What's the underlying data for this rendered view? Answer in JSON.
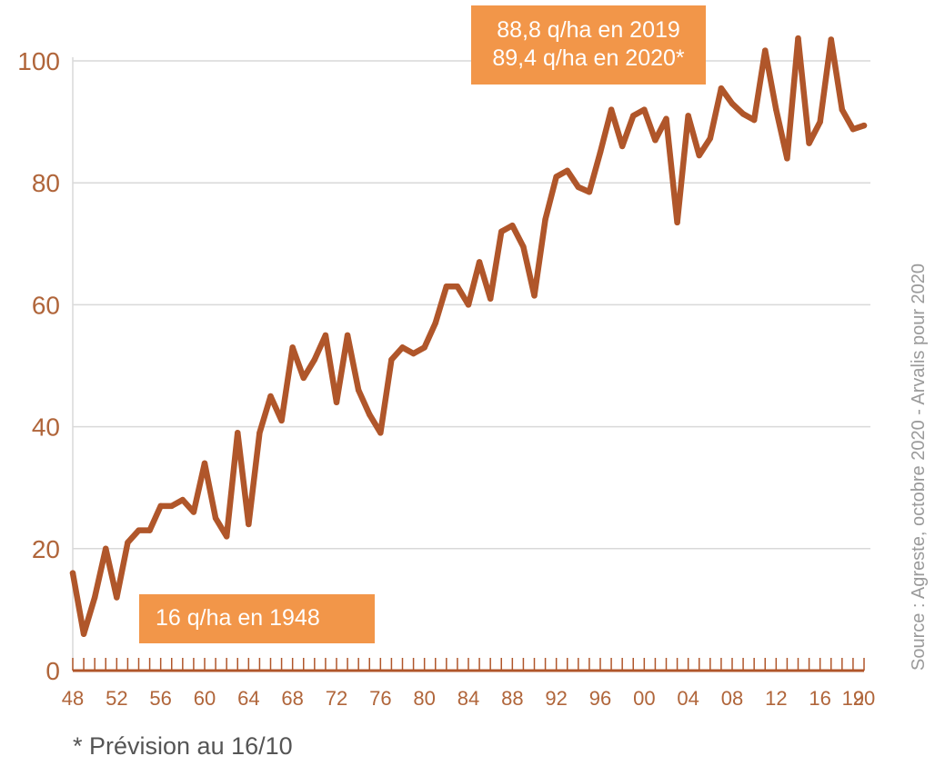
{
  "colors": {
    "line": "#b0562a",
    "axis_text": "#b0653a",
    "grid": "#d9d9d9",
    "callout_bg": "#f29649",
    "callout_text": "#ffffff",
    "source_text": "#9a9a9a"
  },
  "annotations": {
    "top_line1": "88,8 q/ha en 2019",
    "top_line2": "89,4 q/ha en 2020*",
    "bottom": "16 q/ha en 1948"
  },
  "footnote": "* Prévision au 16/10",
  "source": "Source : Agreste, octobre 2020 - Arvalis pour 2020",
  "chart_data": {
    "type": "line",
    "title": "",
    "xlabel": "",
    "ylabel": "",
    "ylim": [
      0,
      100
    ],
    "yticks": [
      0,
      20,
      40,
      60,
      80,
      100
    ],
    "xticks": [
      "48",
      "52",
      "56",
      "60",
      "64",
      "68",
      "72",
      "76",
      "80",
      "84",
      "88",
      "92",
      "96",
      "00",
      "04",
      "08",
      "12",
      "16",
      "19",
      "20"
    ],
    "grid": "horizontal",
    "x": [
      1948,
      1949,
      1950,
      1951,
      1952,
      1953,
      1954,
      1955,
      1956,
      1957,
      1958,
      1959,
      1960,
      1961,
      1962,
      1963,
      1964,
      1965,
      1966,
      1967,
      1968,
      1969,
      1970,
      1971,
      1972,
      1973,
      1974,
      1975,
      1976,
      1977,
      1978,
      1979,
      1980,
      1981,
      1982,
      1983,
      1984,
      1985,
      1986,
      1987,
      1988,
      1989,
      1990,
      1991,
      1992,
      1993,
      1994,
      1995,
      1996,
      1997,
      1998,
      1999,
      2000,
      2001,
      2002,
      2003,
      2004,
      2005,
      2006,
      2007,
      2008,
      2009,
      2010,
      2011,
      2012,
      2013,
      2014,
      2015,
      2016,
      2017,
      2018,
      2019,
      2020
    ],
    "series": [
      {
        "values": [
          16,
          6,
          12,
          20,
          12,
          21,
          23,
          23,
          27,
          27,
          28,
          26,
          34,
          25,
          22,
          39,
          24,
          39,
          45,
          41,
          53,
          48,
          51,
          55,
          44,
          55,
          46,
          42,
          39,
          51,
          53,
          52,
          53,
          57,
          63,
          63,
          60,
          67,
          61,
          72,
          73,
          69.5,
          61.5,
          74,
          81,
          82,
          79.3,
          78.5,
          85,
          92,
          86,
          91,
          92,
          87,
          90.5,
          73.5,
          91,
          84.5,
          87.3,
          95.5,
          93,
          91.3,
          90.3,
          101.7,
          92,
          84,
          103.7,
          86.5,
          90,
          103.5,
          92,
          88.8,
          89.4
        ]
      }
    ]
  }
}
